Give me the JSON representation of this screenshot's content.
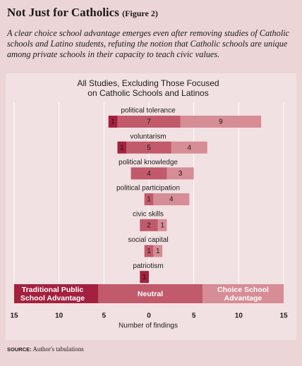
{
  "chart_data": {
    "type": "diverging-bar",
    "title": "Not Just for Catholics",
    "figure_label": "(Figure 2)",
    "subtitle": "A clear choice school advantage emerges even after removing studies of Catholic schools and Latino students, refuting the notion that Catholic schools are unique among private schools in their capacity to teach civic values.",
    "chart_title": "All Studies, Excluding Those Focused on Catholic Schools and Latinos",
    "x_label": "Number of findings",
    "source_label": "SOURCE:",
    "source": "Author's tabulations",
    "categories": [
      "political tolerance",
      "voluntarism",
      "political knowledge",
      "political participation",
      "civic skills",
      "social capital",
      "patriotism"
    ],
    "series": [
      {
        "name": "Traditional Public School Advantage",
        "color": "#a3213e",
        "values": [
          1,
          1,
          0,
          0,
          0,
          0,
          1
        ]
      },
      {
        "name": "Neutral",
        "color": "#c15a6b",
        "values": [
          7,
          5,
          4,
          1,
          2,
          1,
          0
        ]
      },
      {
        "name": "Choice School Advantage",
        "color": "#d68d95",
        "values": [
          9,
          4,
          3,
          4,
          1,
          1,
          0
        ]
      }
    ],
    "xlim": [
      -15,
      15
    ],
    "xticks": [
      {
        "value": -15,
        "label": "15"
      },
      {
        "value": -10,
        "label": "10"
      },
      {
        "value": -5,
        "label": "5"
      },
      0,
      5,
      10,
      15
    ],
    "grid": true
  }
}
